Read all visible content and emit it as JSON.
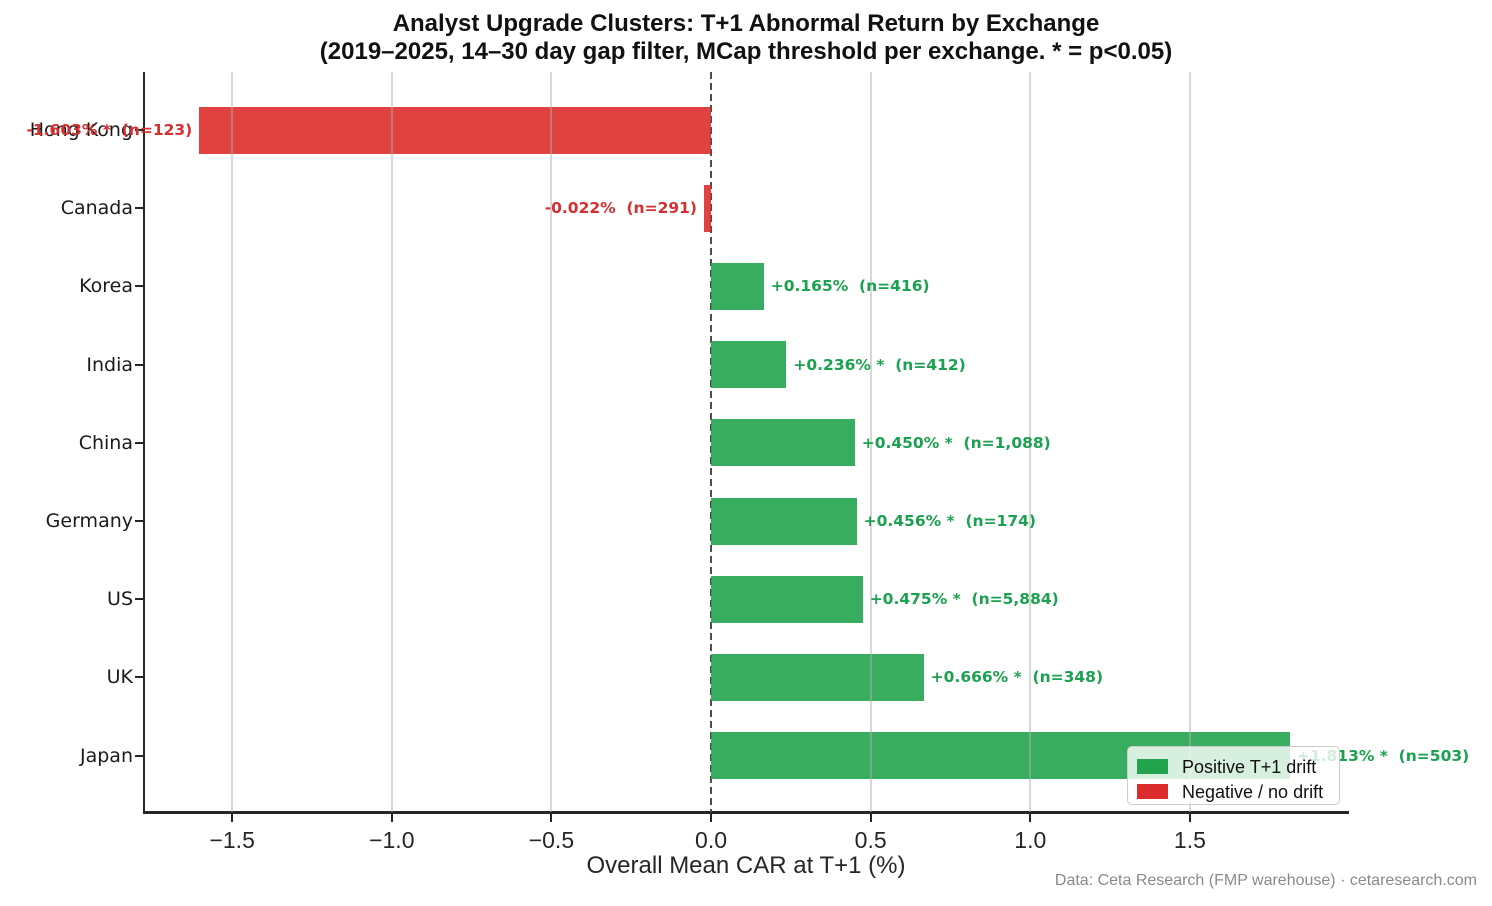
{
  "title": {
    "line1": "Analyst Upgrade Clusters: T+1 Abnormal Return by Exchange",
    "line2": "(2019–2025, 14–30 day gap filter, MCap threshold per exchange. * = p<0.05)"
  },
  "chart_data": {
    "type": "bar",
    "orientation": "horizontal",
    "categories": [
      "Hong Kong",
      "Canada",
      "Korea",
      "India",
      "China",
      "Germany",
      "US",
      "UK",
      "Japan"
    ],
    "values": [
      -1.603,
      -0.022,
      0.165,
      0.236,
      0.45,
      0.456,
      0.475,
      0.666,
      1.813
    ],
    "counts": [
      123,
      291,
      416,
      412,
      1088,
      174,
      5884,
      348,
      503
    ],
    "significant": [
      true,
      false,
      false,
      true,
      true,
      true,
      true,
      true,
      true
    ],
    "value_labels": [
      "-1.603% *  (n=123)",
      "-0.022%  (n=291)",
      "+0.165%  (n=416)",
      "+0.236% *  (n=412)",
      "+0.450% *  (n=1,088)",
      "+0.456% *  (n=174)",
      "+0.475% *  (n=5,884)",
      "+0.666% *  (n=348)",
      "+1.813% *  (n=503)"
    ],
    "xlabel": "Overall Mean CAR at T+1 (%)",
    "xticks": [
      -1.5,
      -1.0,
      -0.5,
      0.0,
      0.5,
      1.0,
      1.5
    ],
    "xtick_labels": [
      "−1.5",
      "−1.0",
      "−0.5",
      "0.0",
      "0.5",
      "1.0",
      "1.5"
    ],
    "xlim": [
      -1.773,
      1.992
    ],
    "grid": "vertical-at-ticks, zero line dashed",
    "colors": {
      "positive_bar": "#22a44e",
      "negative_bar": "#dd2c2c",
      "positive_text": "#1ba14f",
      "negative_text": "#d62f2f",
      "gridline": "#b0b0b0",
      "zero_line": "#4d4d4d"
    },
    "legend": {
      "position": "lower right",
      "items": [
        {
          "label": "Positive T+1 drift",
          "color": "#22a44e"
        },
        {
          "label": "Negative / no drift",
          "color": "#dd2c2c"
        }
      ]
    }
  },
  "footer": {
    "text": "Data: Ceta Research (FMP warehouse) · cetaresearch.com"
  }
}
